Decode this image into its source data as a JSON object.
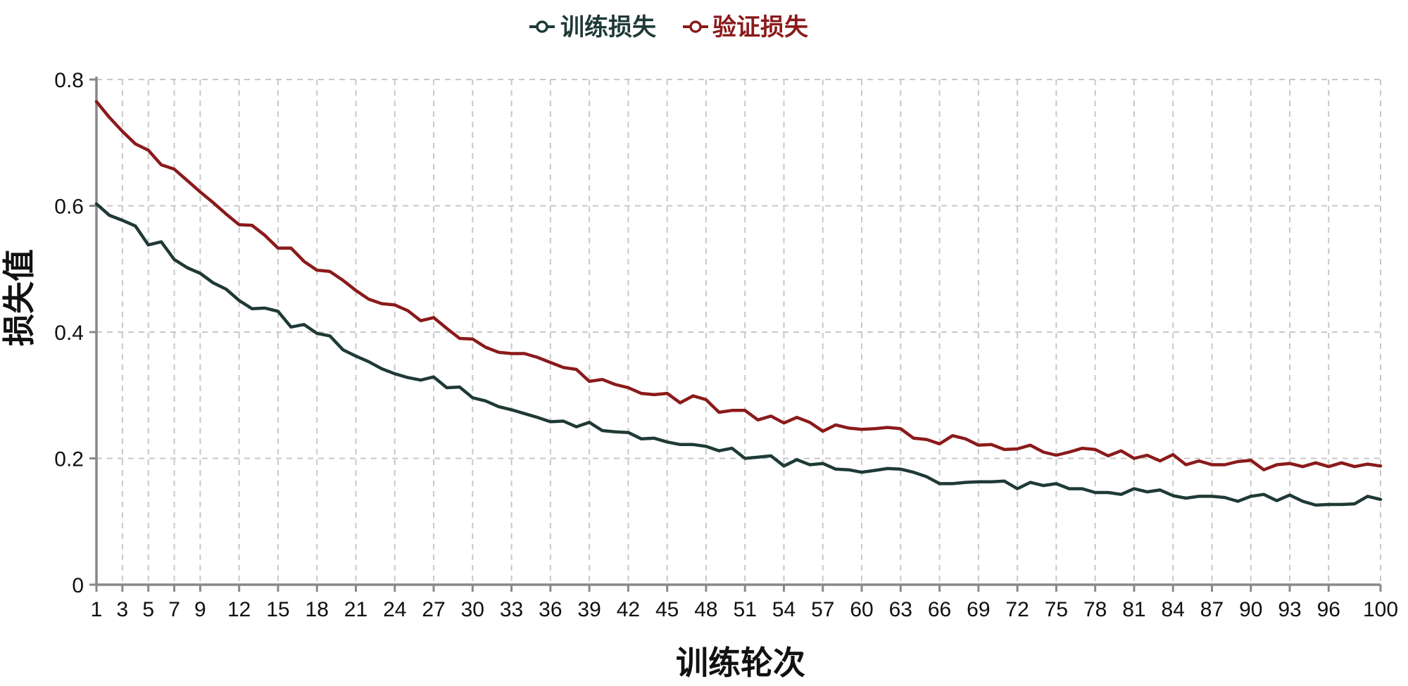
{
  "chart_data": {
    "type": "line",
    "title": "",
    "xlabel": "训练轮次",
    "ylabel": "损失值",
    "xlim": [
      1,
      100
    ],
    "ylim": [
      0,
      0.8
    ],
    "grid": true,
    "legend_position": "top-center",
    "x_tick_labels": [
      "1",
      "3",
      "5",
      "7",
      "9",
      "12",
      "15",
      "18",
      "21",
      "24",
      "27",
      "30",
      "33",
      "36",
      "39",
      "42",
      "45",
      "48",
      "51",
      "54",
      "57",
      "60",
      "63",
      "66",
      "69",
      "72",
      "75",
      "78",
      "81",
      "84",
      "87",
      "90",
      "93",
      "96",
      "100"
    ],
    "y_tick_labels": [
      "0",
      "0.2",
      "0.4",
      "0.6",
      "0.8"
    ],
    "y_ticks": [
      0,
      0.2,
      0.4,
      0.6,
      0.8
    ],
    "colors": {
      "train": "#1e3a36",
      "val": "#8b1a1a",
      "grid": "#c8c8c8",
      "axis": "#888888"
    },
    "series": [
      {
        "name": "训练损失",
        "key": "train",
        "x": [
          1,
          2,
          3,
          4,
          5,
          6,
          7,
          8,
          9,
          10,
          11,
          12,
          13,
          14,
          15,
          16,
          17,
          18,
          19,
          20,
          21,
          22,
          23,
          24,
          25,
          26,
          27,
          28,
          29,
          30,
          31,
          32,
          33,
          34,
          35,
          36,
          37,
          38,
          39,
          40,
          41,
          42,
          43,
          44,
          45,
          46,
          47,
          48,
          49,
          50,
          51,
          52,
          53,
          54,
          55,
          56,
          57,
          58,
          59,
          60,
          61,
          62,
          63,
          64,
          65,
          66,
          67,
          68,
          69,
          70,
          71,
          72,
          73,
          74,
          75,
          76,
          77,
          78,
          79,
          80,
          81,
          82,
          83,
          84,
          85,
          86,
          87,
          88,
          89,
          90,
          91,
          92,
          93,
          94,
          95,
          96,
          97,
          98,
          99,
          100
        ],
        "values": [
          0.603,
          0.585,
          0.577,
          0.568,
          0.538,
          0.543,
          0.515,
          0.502,
          0.493,
          0.478,
          0.468,
          0.45,
          0.437,
          0.438,
          0.433,
          0.408,
          0.412,
          0.398,
          0.394,
          0.372,
          0.362,
          0.353,
          0.342,
          0.334,
          0.328,
          0.324,
          0.329,
          0.312,
          0.313,
          0.296,
          0.291,
          0.282,
          0.277,
          0.271,
          0.265,
          0.258,
          0.259,
          0.25,
          0.257,
          0.244,
          0.242,
          0.241,
          0.231,
          0.232,
          0.226,
          0.222,
          0.222,
          0.219,
          0.212,
          0.216,
          0.2,
          0.202,
          0.204,
          0.188,
          0.198,
          0.19,
          0.192,
          0.183,
          0.182,
          0.178,
          0.181,
          0.184,
          0.183,
          0.178,
          0.171,
          0.16,
          0.16,
          0.162,
          0.163,
          0.163,
          0.164,
          0.152,
          0.162,
          0.157,
          0.16,
          0.152,
          0.152,
          0.146,
          0.146,
          0.143,
          0.152,
          0.147,
          0.15,
          0.141,
          0.137,
          0.14,
          0.14,
          0.138,
          0.132,
          0.14,
          0.143,
          0.133,
          0.142,
          0.132,
          0.126,
          0.127,
          0.127,
          0.128,
          0.14,
          0.135
        ]
      },
      {
        "name": "验证损失",
        "key": "val",
        "x": [
          1,
          2,
          3,
          4,
          5,
          6,
          7,
          8,
          9,
          10,
          11,
          12,
          13,
          14,
          15,
          16,
          17,
          18,
          19,
          20,
          21,
          22,
          23,
          24,
          25,
          26,
          27,
          28,
          29,
          30,
          31,
          32,
          33,
          34,
          35,
          36,
          37,
          38,
          39,
          40,
          41,
          42,
          43,
          44,
          45,
          46,
          47,
          48,
          49,
          50,
          51,
          52,
          53,
          54,
          55,
          56,
          57,
          58,
          59,
          60,
          61,
          62,
          63,
          64,
          65,
          66,
          67,
          68,
          69,
          70,
          71,
          72,
          73,
          74,
          75,
          76,
          77,
          78,
          79,
          80,
          81,
          82,
          83,
          84,
          85,
          86,
          87,
          88,
          89,
          90,
          91,
          92,
          93,
          94,
          95,
          96,
          97,
          98,
          99,
          100
        ],
        "values": [
          0.765,
          0.74,
          0.718,
          0.698,
          0.688,
          0.665,
          0.658,
          0.64,
          0.622,
          0.605,
          0.587,
          0.57,
          0.569,
          0.553,
          0.533,
          0.533,
          0.512,
          0.498,
          0.496,
          0.482,
          0.466,
          0.452,
          0.445,
          0.443,
          0.434,
          0.418,
          0.423,
          0.406,
          0.39,
          0.389,
          0.376,
          0.368,
          0.366,
          0.366,
          0.36,
          0.352,
          0.344,
          0.341,
          0.322,
          0.325,
          0.317,
          0.312,
          0.303,
          0.301,
          0.303,
          0.288,
          0.299,
          0.293,
          0.273,
          0.276,
          0.276,
          0.261,
          0.267,
          0.256,
          0.265,
          0.257,
          0.243,
          0.253,
          0.248,
          0.246,
          0.247,
          0.249,
          0.247,
          0.232,
          0.23,
          0.223,
          0.236,
          0.231,
          0.221,
          0.222,
          0.214,
          0.215,
          0.221,
          0.21,
          0.205,
          0.21,
          0.216,
          0.214,
          0.204,
          0.212,
          0.2,
          0.205,
          0.196,
          0.206,
          0.19,
          0.196,
          0.19,
          0.19,
          0.195,
          0.197,
          0.182,
          0.19,
          0.192,
          0.187,
          0.193,
          0.187,
          0.193,
          0.187,
          0.191,
          0.188
        ]
      }
    ]
  }
}
